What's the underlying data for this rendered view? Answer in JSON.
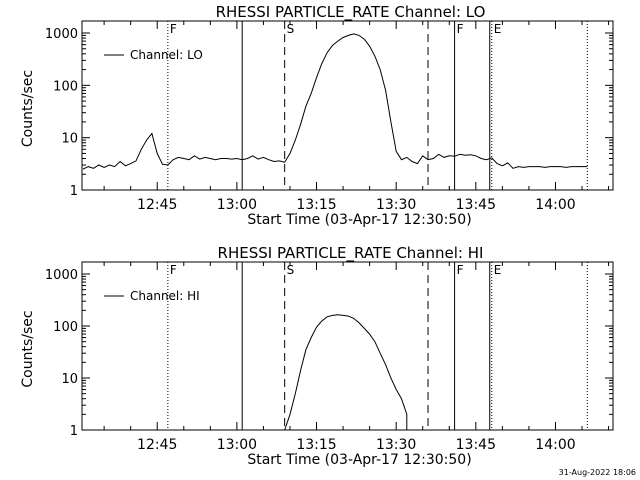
{
  "chart_data": [
    {
      "type": "line",
      "title": "RHESSI PARTICLE_RATE Channel: LO",
      "xlabel": "Start Time (03-Apr-17 12:30:50)",
      "ylabel": "Counts/sec",
      "yscale": "log",
      "ylim": [
        1,
        1000
      ],
      "xlim_minutes": [
        "12:30:50",
        "14:10:50"
      ],
      "x_ticks": [
        "12:45",
        "13:00",
        "13:15",
        "13:30",
        "13:45",
        "14:00"
      ],
      "y_ticks": [
        "1",
        "10",
        "100",
        "1000"
      ],
      "legend": "top-left",
      "series": [
        {
          "name": "Channel: LO",
          "x": [
            "12:31",
            "12:32",
            "12:33",
            "12:34",
            "12:35",
            "12:36",
            "12:37",
            "12:38",
            "12:39",
            "12:40",
            "12:41",
            "12:42",
            "12:43",
            "12:44",
            "12:45",
            "12:46",
            "12:47",
            "12:48",
            "12:49",
            "12:50",
            "12:51",
            "12:52",
            "12:53",
            "12:54",
            "12:55",
            "12:56",
            "12:57",
            "12:58",
            "12:59",
            "13:00",
            "13:01",
            "13:02",
            "13:03",
            "13:04",
            "13:05",
            "13:06",
            "13:07",
            "13:08",
            "13:09",
            "13:10",
            "13:11",
            "13:12",
            "13:13",
            "13:14",
            "13:15",
            "13:16",
            "13:17",
            "13:18",
            "13:19",
            "13:20",
            "13:21",
            "13:22",
            "13:23",
            "13:24",
            "13:25",
            "13:26",
            "13:27",
            "13:28",
            "13:29",
            "13:30",
            "13:31",
            "13:32",
            "13:33",
            "13:34",
            "13:35",
            "13:36",
            "13:37",
            "13:38",
            "13:39",
            "13:40",
            "13:41",
            "13:42",
            "13:43",
            "13:44",
            "13:45",
            "13:46",
            "13:47",
            "13:48",
            "13:49",
            "13:50",
            "13:51",
            "13:52",
            "13:53",
            "13:54",
            "13:55",
            "13:56",
            "13:57",
            "13:58",
            "13:59",
            "14:00",
            "14:01",
            "14:02",
            "14:03",
            "14:04",
            "14:05",
            "14:06"
          ],
          "values": [
            2.5,
            2.8,
            2.6,
            3,
            2.7,
            3,
            2.8,
            3.5,
            2.9,
            3.2,
            3.6,
            6,
            9,
            12,
            5,
            3.1,
            3,
            3.8,
            4.2,
            4,
            3.8,
            4.5,
            3.9,
            4.2,
            4,
            3.8,
            4,
            4,
            3.9,
            4,
            3.8,
            4,
            4.5,
            3.9,
            4.2,
            3.8,
            3.5,
            3.6,
            3.4,
            5,
            9,
            18,
            40,
            70,
            140,
            260,
            420,
            580,
            700,
            820,
            900,
            960,
            900,
            760,
            560,
            360,
            200,
            80,
            20,
            5.5,
            3.8,
            4.2,
            3.5,
            3.2,
            4.5,
            3.8,
            4,
            4.8,
            4.2,
            4.5,
            4.4,
            4.8,
            4.6,
            4.7,
            4.5,
            4,
            3.8,
            4.1,
            3.2,
            2.9,
            3.3,
            2.6,
            2.8,
            2.7,
            2.8,
            2.8,
            2.8,
            2.7,
            2.8,
            2.8,
            2.8,
            2.7,
            2.8,
            2.8,
            2.8,
            2.8
          ]
        }
      ],
      "markers": [
        {
          "label": "F",
          "time": "12:47",
          "style": "dotted"
        },
        {
          "label": "",
          "time": "13:01",
          "style": "solid"
        },
        {
          "label": "S",
          "time": "13:09",
          "style": "dashed"
        },
        {
          "label": "",
          "time": "13:36",
          "style": "dashed"
        },
        {
          "label": "F",
          "time": "13:41",
          "style": "solid"
        },
        {
          "label": "",
          "time": "13:48",
          "style": "solid"
        },
        {
          "label": "E",
          "time": "13:48",
          "style": "dotted"
        },
        {
          "label": "",
          "time": "14:06",
          "style": "dotted"
        }
      ]
    },
    {
      "type": "line",
      "title": "RHESSI PARTICLE_RATE Channel: HI",
      "xlabel": "Start Time (03-Apr-17 12:30:50)",
      "ylabel": "Counts/sec",
      "yscale": "log",
      "ylim": [
        1,
        1000
      ],
      "xlim_minutes": [
        "12:30:50",
        "14:10:50"
      ],
      "x_ticks": [
        "12:45",
        "13:00",
        "13:15",
        "13:30",
        "13:45",
        "14:00"
      ],
      "y_ticks": [
        "1",
        "10",
        "100",
        "1000"
      ],
      "legend": "top-left",
      "series": [
        {
          "name": "Channel: HI",
          "x": [
            "13:09",
            "13:10",
            "13:11",
            "13:12",
            "13:13",
            "13:14",
            "13:15",
            "13:16",
            "13:17",
            "13:18",
            "13:19",
            "13:20",
            "13:21",
            "13:22",
            "13:23",
            "13:24",
            "13:25",
            "13:26",
            "13:27",
            "13:28",
            "13:29",
            "13:30",
            "13:31",
            "13:32"
          ],
          "values": [
            1,
            2,
            5,
            14,
            35,
            60,
            95,
            125,
            150,
            160,
            165,
            160,
            155,
            140,
            115,
            90,
            70,
            50,
            30,
            18,
            10,
            6,
            4,
            2
          ]
        }
      ],
      "markers": [
        {
          "label": "F",
          "time": "12:47",
          "style": "dotted"
        },
        {
          "label": "",
          "time": "13:01",
          "style": "solid"
        },
        {
          "label": "S",
          "time": "13:09",
          "style": "dashed"
        },
        {
          "label": "",
          "time": "13:36",
          "style": "dashed"
        },
        {
          "label": "F",
          "time": "13:41",
          "style": "solid"
        },
        {
          "label": "",
          "time": "13:48",
          "style": "solid"
        },
        {
          "label": "E",
          "time": "13:48",
          "style": "dotted"
        },
        {
          "label": "",
          "time": "14:06",
          "style": "dotted"
        }
      ]
    }
  ],
  "footer": {
    "timestamp": "31-Aug-2022 18:06"
  }
}
